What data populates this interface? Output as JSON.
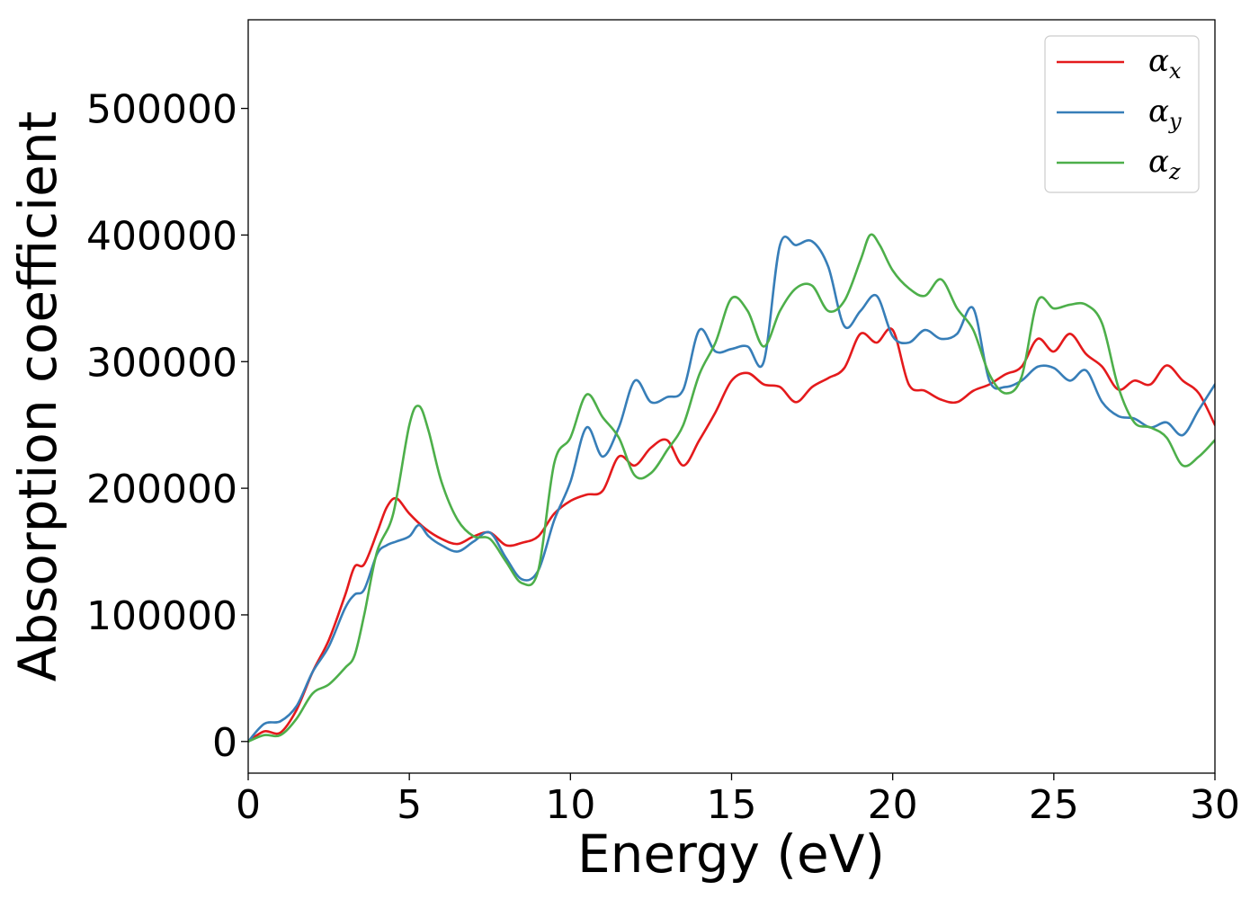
{
  "chart_data": {
    "type": "line",
    "title": "",
    "xlabel": "Energy (eV)",
    "ylabel": "Absorption coefficient",
    "xlim": [
      0,
      30
    ],
    "ylim": [
      -25000,
      570000
    ],
    "xticks": [
      "0",
      "5",
      "10",
      "15",
      "20",
      "25",
      "30"
    ],
    "yticks": [
      "0",
      "100000",
      "200000",
      "300000",
      "400000",
      "500000"
    ],
    "grid": false,
    "legend_position": "top-right",
    "series": [
      {
        "name": "α_x",
        "symbol": "α",
        "subscript": "x",
        "color": "#e41a1c",
        "x": [
          0,
          0.5,
          1.0,
          1.5,
          2.0,
          2.5,
          3.0,
          3.3,
          3.6,
          4.0,
          4.3,
          4.6,
          5.0,
          5.5,
          6.0,
          6.5,
          7.0,
          7.5,
          8.0,
          8.5,
          9.0,
          9.5,
          10.0,
          10.5,
          11.0,
          11.5,
          12.0,
          12.5,
          13.0,
          13.5,
          14.0,
          14.5,
          15.0,
          15.5,
          16.0,
          16.5,
          17.0,
          17.5,
          18.0,
          18.5,
          19.0,
          19.5,
          20.0,
          20.5,
          21.0,
          21.5,
          22.0,
          22.5,
          23.0,
          23.5,
          24.0,
          24.5,
          25.0,
          25.5,
          26.0,
          26.5,
          27.0,
          27.5,
          28.0,
          28.5,
          29.0,
          29.5,
          30.0
        ],
        "y": [
          0,
          8000,
          7000,
          25000,
          55000,
          80000,
          115000,
          138000,
          140000,
          165000,
          185000,
          192000,
          180000,
          168000,
          160000,
          156000,
          162000,
          165000,
          155000,
          157000,
          162000,
          180000,
          190000,
          195000,
          198000,
          225000,
          218000,
          232000,
          238000,
          218000,
          238000,
          260000,
          285000,
          291000,
          282000,
          280000,
          268000,
          280000,
          287000,
          295000,
          322000,
          315000,
          325000,
          282000,
          277000,
          270000,
          268000,
          277000,
          282000,
          290000,
          296000,
          318000,
          308000,
          322000,
          306000,
          296000,
          278000,
          285000,
          282000,
          297000,
          285000,
          275000,
          250000
        ]
      },
      {
        "name": "α_y",
        "symbol": "α",
        "subscript": "y",
        "color": "#377eb8",
        "x": [
          0,
          0.5,
          1.0,
          1.5,
          2.0,
          2.5,
          3.0,
          3.3,
          3.6,
          4.0,
          4.3,
          4.6,
          5.0,
          5.3,
          5.6,
          6.0,
          6.5,
          7.0,
          7.5,
          8.0,
          8.5,
          9.0,
          9.5,
          10.0,
          10.5,
          11.0,
          11.5,
          12.0,
          12.5,
          13.0,
          13.5,
          14.0,
          14.5,
          15.0,
          15.5,
          16.0,
          16.5,
          17.0,
          17.5,
          18.0,
          18.5,
          19.0,
          19.5,
          20.0,
          20.5,
          21.0,
          21.5,
          22.0,
          22.5,
          23.0,
          23.5,
          24.0,
          24.5,
          25.0,
          25.5,
          26.0,
          26.5,
          27.0,
          27.5,
          28.0,
          28.5,
          29.0,
          29.5,
          30.0
        ],
        "y": [
          0,
          14000,
          16000,
          28000,
          55000,
          75000,
          105000,
          116000,
          120000,
          148000,
          155000,
          158000,
          162000,
          171000,
          162000,
          155000,
          150000,
          158000,
          165000,
          145000,
          128000,
          135000,
          175000,
          205000,
          248000,
          225000,
          248000,
          285000,
          268000,
          272000,
          278000,
          325000,
          308000,
          310000,
          312000,
          300000,
          392000,
          392000,
          395000,
          375000,
          328000,
          340000,
          352000,
          320000,
          315000,
          325000,
          318000,
          322000,
          342000,
          285000,
          280000,
          285000,
          296000,
          295000,
          285000,
          293000,
          268000,
          257000,
          255000,
          248000,
          252000,
          242000,
          262000,
          282000
        ]
      },
      {
        "name": "α_z",
        "symbol": "α",
        "subscript": "z",
        "color": "#4daf4a",
        "x": [
          0,
          0.5,
          1.0,
          1.5,
          2.0,
          2.5,
          3.0,
          3.3,
          3.6,
          4.0,
          4.5,
          5.0,
          5.3,
          5.6,
          6.0,
          6.5,
          7.0,
          7.5,
          8.0,
          8.5,
          9.0,
          9.5,
          10.0,
          10.5,
          11.0,
          11.5,
          12.0,
          12.5,
          13.0,
          13.5,
          14.0,
          14.5,
          15.0,
          15.5,
          16.0,
          16.5,
          17.0,
          17.5,
          18.0,
          18.5,
          19.0,
          19.3,
          19.6,
          20.0,
          20.5,
          21.0,
          21.5,
          22.0,
          22.5,
          23.0,
          23.5,
          24.0,
          24.5,
          25.0,
          25.5,
          26.0,
          26.5,
          27.0,
          27.5,
          28.0,
          28.5,
          29.0,
          29.5,
          30.0
        ],
        "y": [
          0,
          5000,
          5000,
          18000,
          38000,
          45000,
          58000,
          68000,
          100000,
          150000,
          180000,
          250000,
          265000,
          245000,
          205000,
          175000,
          162000,
          160000,
          142000,
          125000,
          135000,
          220000,
          240000,
          274000,
          256000,
          240000,
          210000,
          212000,
          230000,
          250000,
          290000,
          315000,
          350000,
          340000,
          312000,
          340000,
          358000,
          360000,
          340000,
          348000,
          380000,
          400000,
          392000,
          372000,
          358000,
          352000,
          365000,
          342000,
          325000,
          290000,
          275000,
          288000,
          348000,
          342000,
          345000,
          345000,
          330000,
          280000,
          252000,
          248000,
          240000,
          218000,
          225000,
          238000
        ]
      }
    ]
  }
}
